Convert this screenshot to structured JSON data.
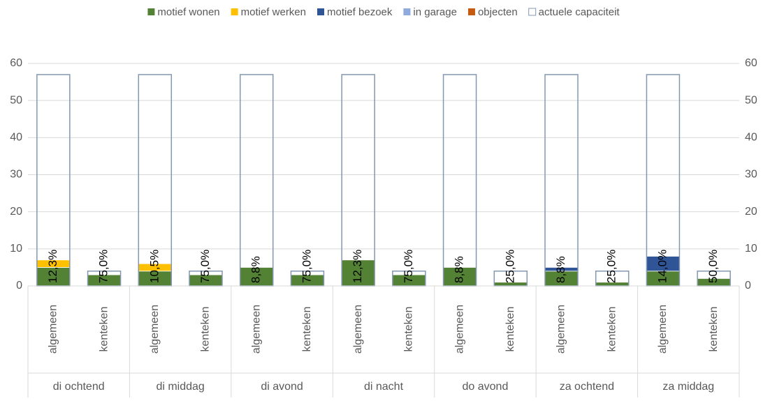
{
  "chart_data": {
    "type": "stacked_bar",
    "groups": [
      "di ochtend",
      "di middag",
      "di avond",
      "di nacht",
      "do avond",
      "za ochtend",
      "za middag"
    ],
    "categories": [
      "algemeen",
      "kenteken",
      "algemeen",
      "kenteken",
      "algemeen",
      "kenteken",
      "algemeen",
      "kenteken",
      "algemeen",
      "kenteken",
      "algemeen",
      "kenteken",
      "algemeen",
      "kenteken"
    ],
    "series": [
      {
        "name": "motief wonen",
        "color": "#548235",
        "values": [
          5,
          3,
          4,
          3,
          5,
          3,
          7,
          3,
          5,
          1,
          4,
          1,
          4,
          2
        ]
      },
      {
        "name": "motief werken",
        "color": "#ffc000",
        "values": [
          2,
          0,
          2,
          0,
          0,
          0,
          0,
          0,
          0,
          0,
          0,
          0,
          0,
          0
        ]
      },
      {
        "name": "motief bezoek",
        "color": "#2f5597",
        "values": [
          0,
          0,
          0,
          0,
          0,
          0,
          0,
          0,
          0,
          0,
          1,
          0,
          4,
          0
        ]
      },
      {
        "name": "in garage",
        "color": "#8faadc",
        "values": [
          0,
          0,
          0,
          0,
          0,
          0,
          0,
          0,
          0,
          0,
          0,
          0,
          0,
          0
        ]
      },
      {
        "name": "objecten",
        "color": "#c55a11",
        "values": [
          0,
          0,
          0,
          0,
          0,
          0,
          0,
          0,
          0,
          0,
          0,
          0,
          0,
          0
        ]
      },
      {
        "name": "actuele capaciteit",
        "color": "#8497b0",
        "fill": "none",
        "values": [
          57,
          4,
          57,
          4,
          57,
          4,
          57,
          4,
          57,
          4,
          57,
          4,
          57,
          4
        ]
      }
    ],
    "value_labels": [
      "12,3%",
      "75,0%",
      "10,5%",
      "75,0%",
      "8,8%",
      "75,0%",
      "12,3%",
      "75,0%",
      "8,8%",
      "25,0%",
      "8,8%",
      "25,0%",
      "14,0%",
      "50,0%"
    ],
    "ylim": [
      0,
      60
    ],
    "yticks": [
      0,
      10,
      20,
      30,
      40,
      50,
      60
    ],
    "y2lim": [
      0,
      60
    ],
    "y2ticks": [
      0,
      10,
      20,
      30,
      40,
      50,
      60
    ],
    "grid": true,
    "legend": "top"
  }
}
